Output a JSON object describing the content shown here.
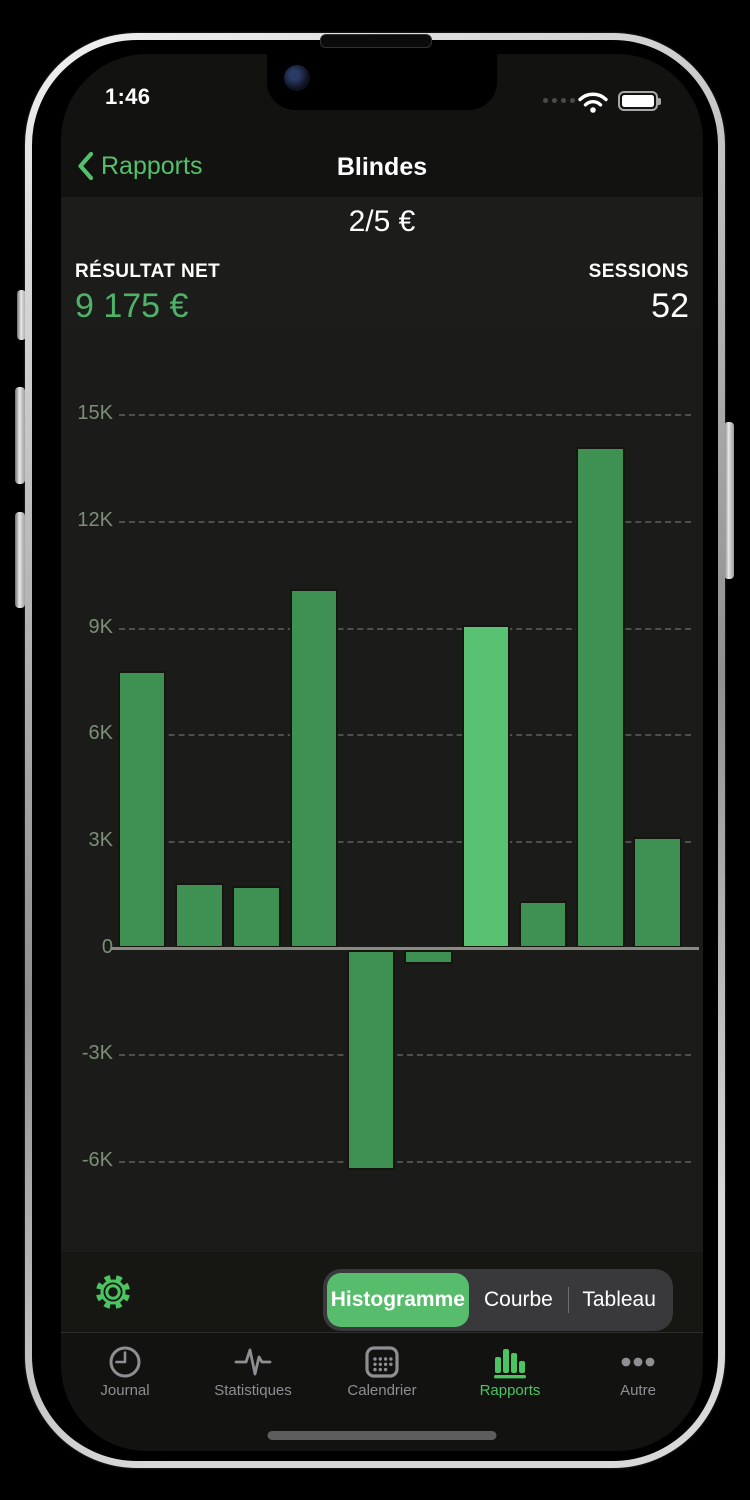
{
  "status_bar": {
    "time": "1:46",
    "battery_level": "full"
  },
  "nav": {
    "back_label": "Rapports",
    "title": "Blindes"
  },
  "summary": {
    "stakes": "2/5 €",
    "net_label": "RÉSULTAT NET",
    "net_value": "9 175 €",
    "sessions_label": "SESSIONS",
    "sessions_value": "52"
  },
  "chart_data": {
    "type": "bar",
    "title": "",
    "xlabel": "",
    "ylabel": "",
    "categories": [
      "",
      "",
      "",
      "",
      "",
      "",
      "",
      "",
      "",
      ""
    ],
    "values": [
      7800,
      1850,
      1750,
      10100,
      -6200,
      -400,
      9100,
      1350,
      14100,
      3150
    ],
    "highlighted_index": 6,
    "y_ticks": [
      {
        "label": "15K",
        "value": 15000
      },
      {
        "label": "12K",
        "value": 12000
      },
      {
        "label": "9K",
        "value": 9000
      },
      {
        "label": "6K",
        "value": 6000
      },
      {
        "label": "3K",
        "value": 3000
      },
      {
        "label": "0",
        "value": 0
      },
      {
        "label": "-3K",
        "value": -3000
      },
      {
        "label": "-6K",
        "value": -6000
      }
    ],
    "ylim": [
      -8500,
      17400
    ],
    "grid": "dashed-horizontal",
    "legend": "none",
    "bar_color": "#3E9152",
    "bar_highlight_color": "#58C172"
  },
  "controls": {
    "segments": [
      "Histogramme",
      "Courbe",
      "Tableau"
    ],
    "selected_segment": "Histogramme",
    "selected_color": "#57BD6D"
  },
  "tab_bar": {
    "items": [
      {
        "label": "Journal"
      },
      {
        "label": "Statistiques"
      },
      {
        "label": "Calendrier"
      },
      {
        "label": "Rapports"
      },
      {
        "label": "Autre"
      }
    ],
    "active": "Rapports"
  },
  "colors": {
    "accent_green": "#55C06C",
    "value_green": "#4EB369",
    "inactive_gray": "#8E8E93"
  }
}
